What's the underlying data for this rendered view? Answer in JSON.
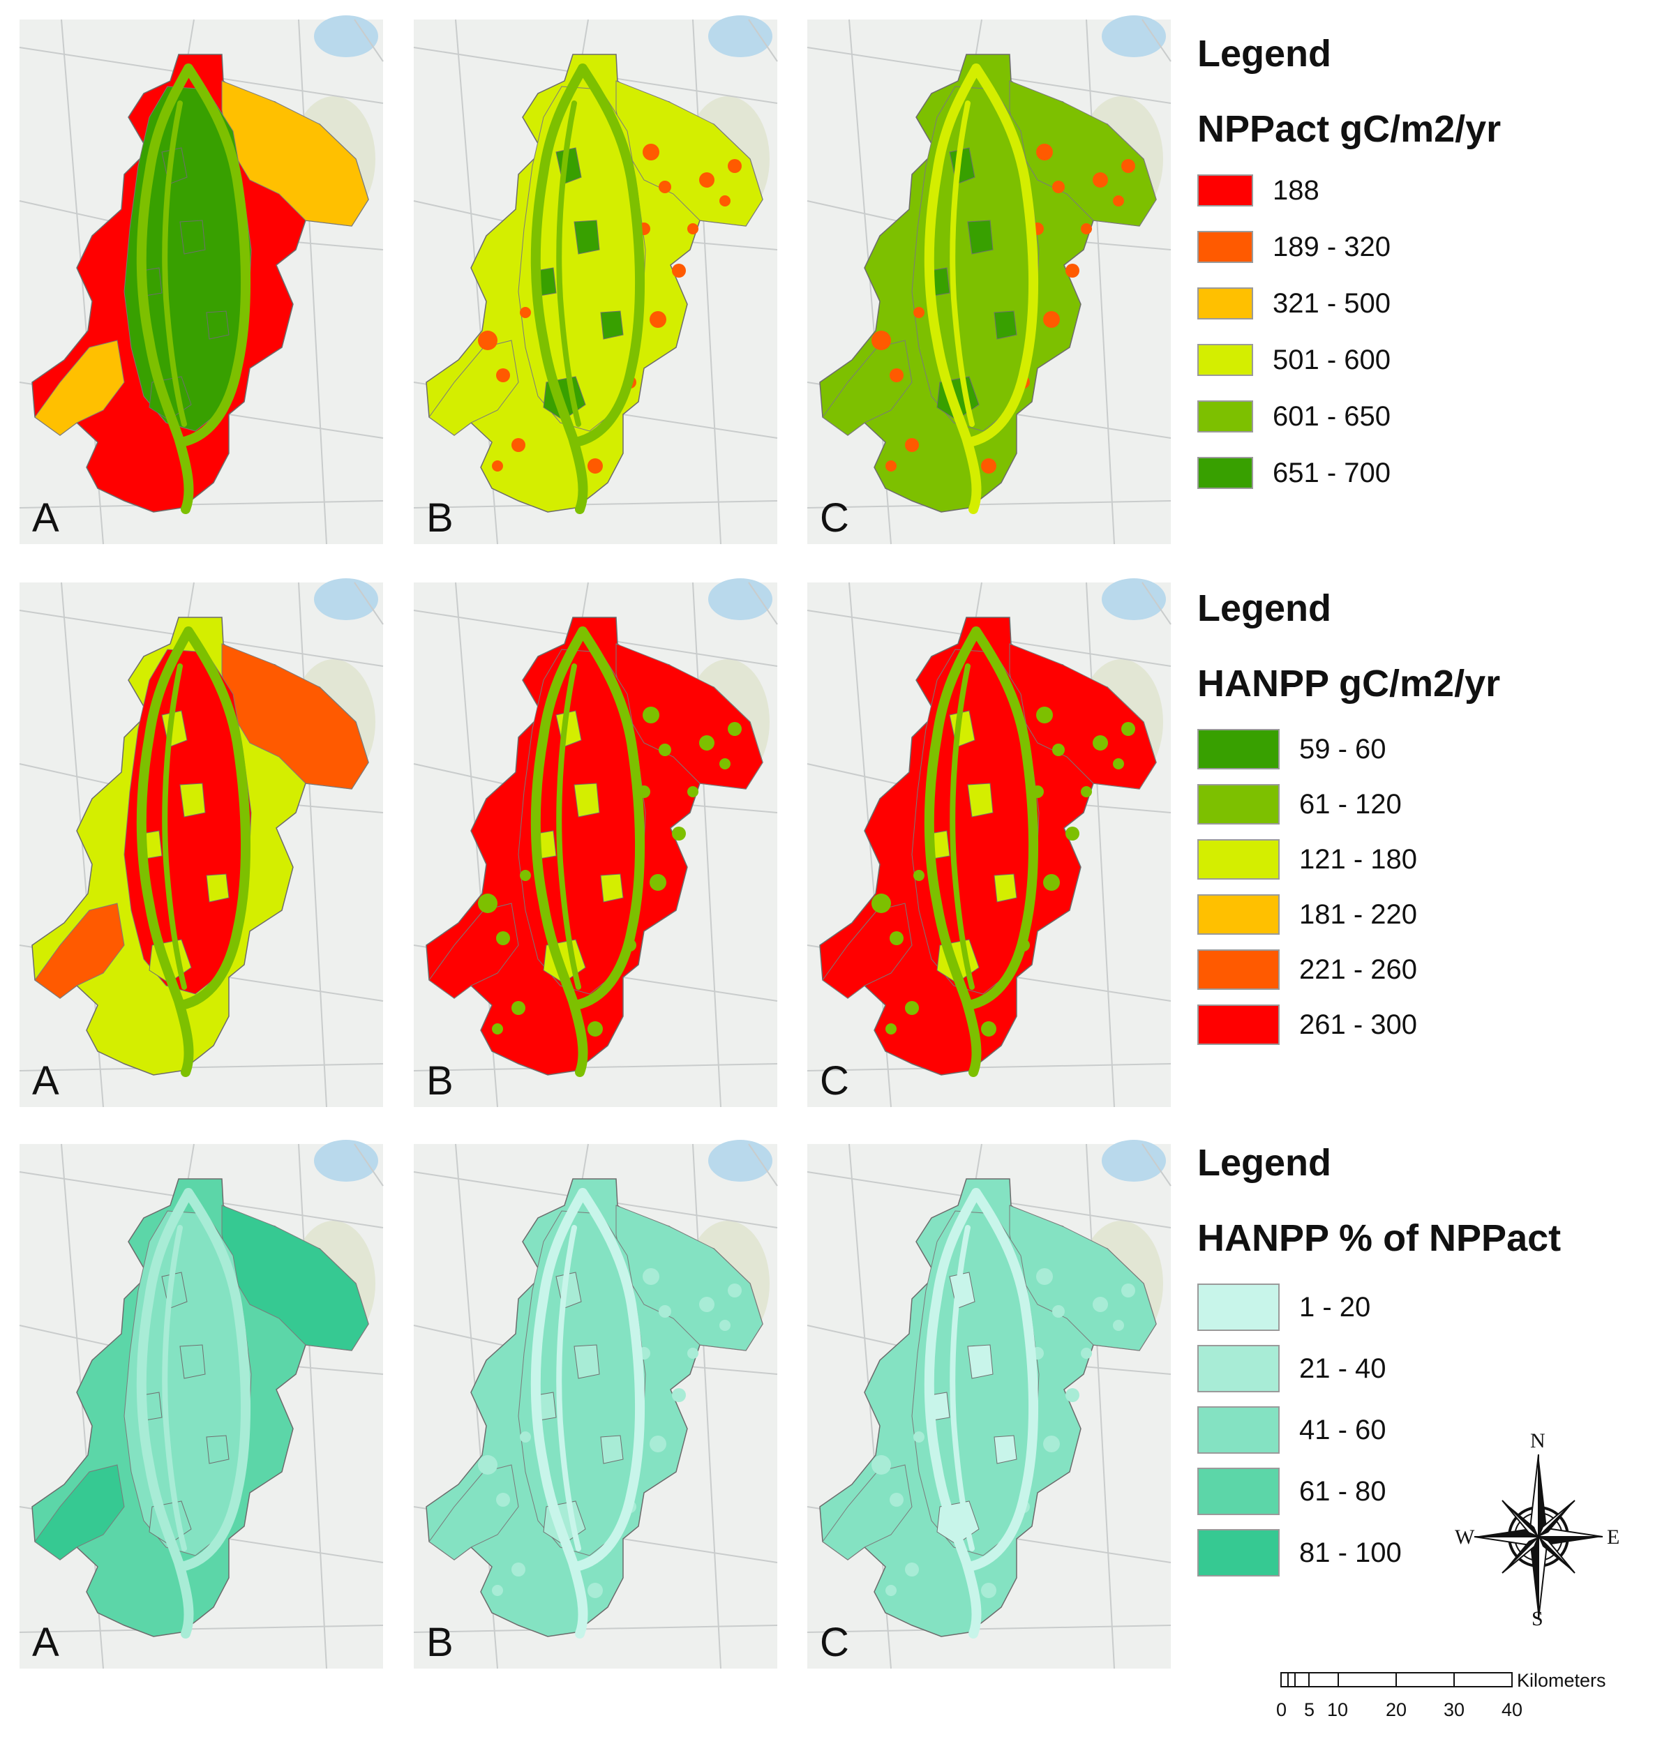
{
  "panel_letters": [
    "A",
    "B",
    "C"
  ],
  "maps": [
    {
      "legend_title": "Legend",
      "legend_subtitle": "NPPact gC/m2/yr",
      "classes": [
        {
          "label": "188",
          "color": "#ff0000"
        },
        {
          "label": "189 - 320",
          "color": "#ff5a00"
        },
        {
          "label": "321 - 500",
          "color": "#ffc000"
        },
        {
          "label": "501 - 600",
          "color": "#d4ee00"
        },
        {
          "label": "601 - 650",
          "color": "#7dc000"
        },
        {
          "label": "651 - 700",
          "color": "#38a000"
        }
      ],
      "scenario_fills": {
        "A": {
          "base": "#ff0000",
          "core": "#38a000",
          "belt": "#ffc000",
          "river": "#7dc000",
          "patch": "#38a000"
        },
        "B": {
          "base": "#d4ee00",
          "core": "#d4ee00",
          "belt": "#d4ee00",
          "river": "#7dc000",
          "patch": "#38a000",
          "speckle": "#ff5a00"
        },
        "C": {
          "base": "#7dc000",
          "core": "#7dc000",
          "belt": "#7dc000",
          "river": "#d4ee00",
          "patch": "#38a000",
          "speckle": "#ff5a00"
        }
      }
    },
    {
      "legend_title": "Legend",
      "legend_subtitle": "HANPP gC/m2/yr",
      "classes": [
        {
          "label": "59 - 60",
          "color": "#38a000"
        },
        {
          "label": "61 - 120",
          "color": "#7dc000"
        },
        {
          "label": "121 - 180",
          "color": "#d4ee00"
        },
        {
          "label": "181 - 220",
          "color": "#ffc000"
        },
        {
          "label": "221 - 260",
          "color": "#ff5a00"
        },
        {
          "label": "261 - 300",
          "color": "#ff0000"
        }
      ],
      "scenario_fills": {
        "A": {
          "base": "#d4ee00",
          "core": "#ff0000",
          "belt": "#ff5a00",
          "river": "#7dc000",
          "patch": "#d4ee00"
        },
        "B": {
          "base": "#ff0000",
          "core": "#ff0000",
          "belt": "#ff0000",
          "river": "#7dc000",
          "patch": "#d4ee00",
          "speckle": "#7dc000"
        },
        "C": {
          "base": "#ff0000",
          "core": "#ff0000",
          "belt": "#ff0000",
          "river": "#7dc000",
          "patch": "#d4ee00",
          "speckle": "#7dc000"
        }
      }
    },
    {
      "legend_title": "Legend",
      "legend_subtitle": "HANPP % of NPPact",
      "classes": [
        {
          "label": "1 - 20",
          "color": "#c8f5ea"
        },
        {
          "label": "21 - 40",
          "color": "#a8ecd6"
        },
        {
          "label": "41 - 60",
          "color": "#84e2c2"
        },
        {
          "label": "61 - 80",
          "color": "#5cd6a8"
        },
        {
          "label": "81 - 100",
          "color": "#36c992"
        }
      ],
      "scenario_fills": {
        "A": {
          "base": "#5cd6a8",
          "core": "#84e2c2",
          "belt": "#36c992",
          "river": "#a8ecd6",
          "patch": "#84e2c2"
        },
        "B": {
          "base": "#84e2c2",
          "core": "#84e2c2",
          "belt": "#84e2c2",
          "river": "#c8f5ea",
          "patch": "#a8ecd6",
          "speckle": "#a8ecd6"
        },
        "C": {
          "base": "#84e2c2",
          "core": "#84e2c2",
          "belt": "#84e2c2",
          "river": "#c8f5ea",
          "patch": "#c8f5ea",
          "speckle": "#a8ecd6"
        }
      }
    }
  ],
  "compass": {
    "n": "N",
    "s": "S",
    "e": "E",
    "w": "W"
  },
  "scale": {
    "unit": "Kilometers",
    "ticks": [
      "0",
      "5",
      "10",
      "20",
      "30",
      "40"
    ]
  }
}
